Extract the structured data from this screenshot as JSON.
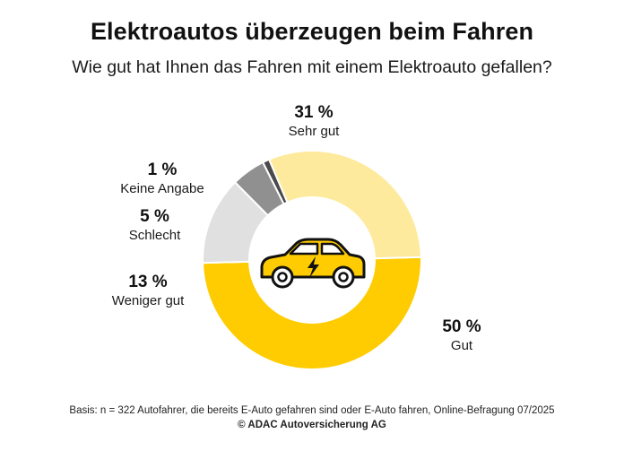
{
  "title": "Elektroautos überzeugen beim Fahren",
  "subtitle": "Wie gut hat Ihnen das Fahren mit einem Elektroauto gefallen?",
  "footer": {
    "basis": "Basis: n = 322 Autofahrer, die bereits E-Auto gefahren sind oder E-Auto fahren, Online-Befragung 07/2025",
    "copyright": "© ADAC Autoversicherung AG"
  },
  "center_icon": "electric-car-icon",
  "chart_data": {
    "type": "pie",
    "variant": "donut",
    "title": "Elektroautos überzeugen beim Fahren",
    "subtitle": "Wie gut hat Ihnen das Fahren mit einem Elektroauto gefallen?",
    "slices": [
      {
        "label": "Gut",
        "value": 50,
        "display": "50 %",
        "color": "#fecc00"
      },
      {
        "label": "Weniger gut",
        "value": 13,
        "display": "13 %",
        "color": "#e0e0e0"
      },
      {
        "label": "Schlecht",
        "value": 5,
        "display": "5 %",
        "color": "#909090"
      },
      {
        "label": "Keine Angabe",
        "value": 1,
        "display": "1 %",
        "color": "#4a4a4a"
      },
      {
        "label": "Sehr gut",
        "value": 31,
        "display": "31 %",
        "color": "#feea9c"
      }
    ]
  }
}
